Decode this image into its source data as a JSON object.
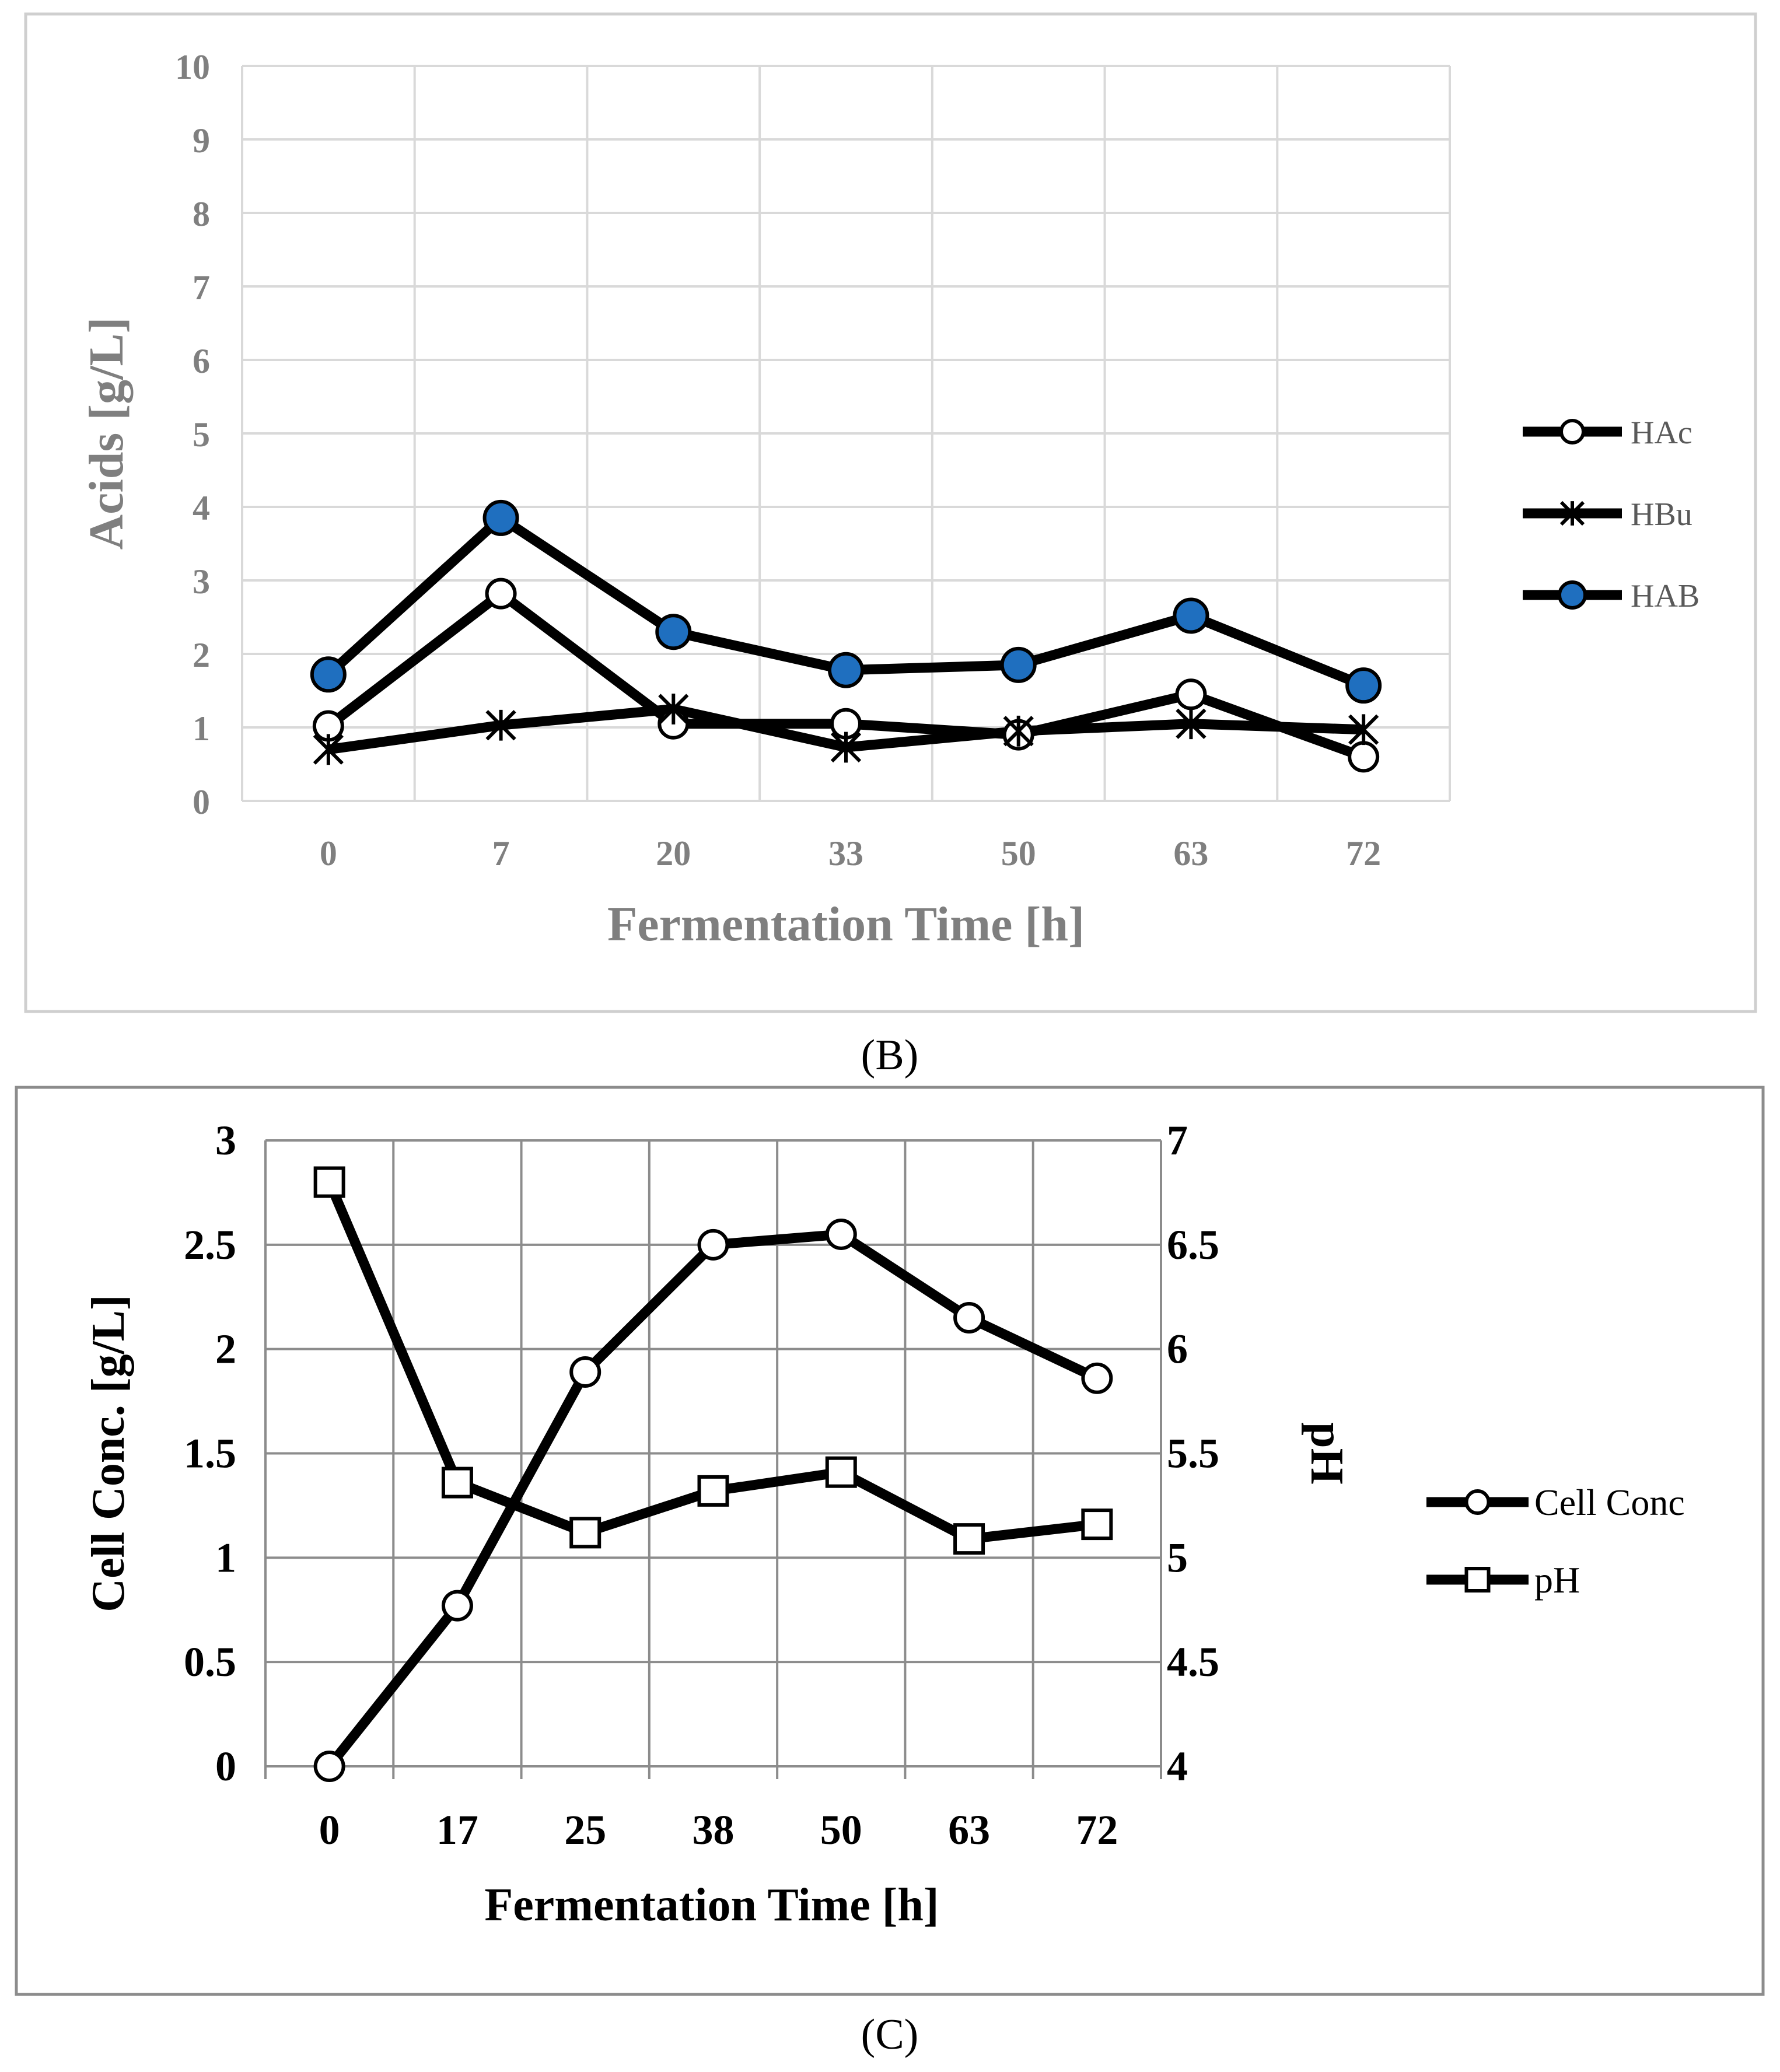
{
  "panel_labels": {
    "b": "(B)",
    "c": "(C)"
  },
  "chart_data": [
    {
      "type": "line",
      "panel": "(B)",
      "xlabel": "Fermentation Time [h]",
      "ylabel": "Acids [g/L]",
      "categories": [
        "0",
        "7",
        "20",
        "33",
        "50",
        "63",
        "72"
      ],
      "ylim": [
        0,
        10
      ],
      "yticks": [
        "0",
        "1",
        "2",
        "3",
        "4",
        "5",
        "6",
        "7",
        "8",
        "9",
        "10"
      ],
      "grid": true,
      "legend_position": "right",
      "series": [
        {
          "name": "HAc",
          "marker": "circle-open",
          "color": "#000000",
          "values": [
            1.02,
            2.82,
            1.05,
            1.05,
            0.9,
            1.45,
            0.6
          ]
        },
        {
          "name": "HBu",
          "marker": "asterisk",
          "color": "#000000",
          "values": [
            0.7,
            1.03,
            1.25,
            0.73,
            0.95,
            1.05,
            0.97
          ]
        },
        {
          "name": "HAB",
          "marker": "circle-filled",
          "color": "#000000",
          "marker_fill": "#1f6fbf",
          "values": [
            1.72,
            3.85,
            2.3,
            1.78,
            1.85,
            2.52,
            1.57
          ]
        }
      ]
    },
    {
      "type": "line",
      "panel": "(C)",
      "xlabel": "Fermentation Time [h]",
      "ylabel": "Cell Conc. [g/L]",
      "y2label": "pH",
      "categories": [
        "0",
        "17",
        "25",
        "38",
        "50",
        "63",
        "72"
      ],
      "ylim": [
        0,
        3
      ],
      "yticks": [
        "0",
        "0.5",
        "1",
        "1.5",
        "2",
        "2.5",
        "3"
      ],
      "y2lim": [
        4,
        7
      ],
      "y2ticks": [
        "4",
        "4.5",
        "5",
        "5.5",
        "6",
        "6.5",
        "7"
      ],
      "grid": true,
      "legend_position": "right",
      "series": [
        {
          "name": "Cell Conc",
          "axis": "left",
          "marker": "circle-open",
          "color": "#000000",
          "values": [
            0.0,
            0.77,
            1.89,
            2.5,
            2.55,
            2.15,
            1.86
          ]
        },
        {
          "name": "pH",
          "axis": "right",
          "marker": "square-open",
          "color": "#000000",
          "values": [
            6.8,
            5.36,
            5.12,
            5.32,
            5.41,
            5.09,
            5.16
          ]
        }
      ]
    }
  ]
}
